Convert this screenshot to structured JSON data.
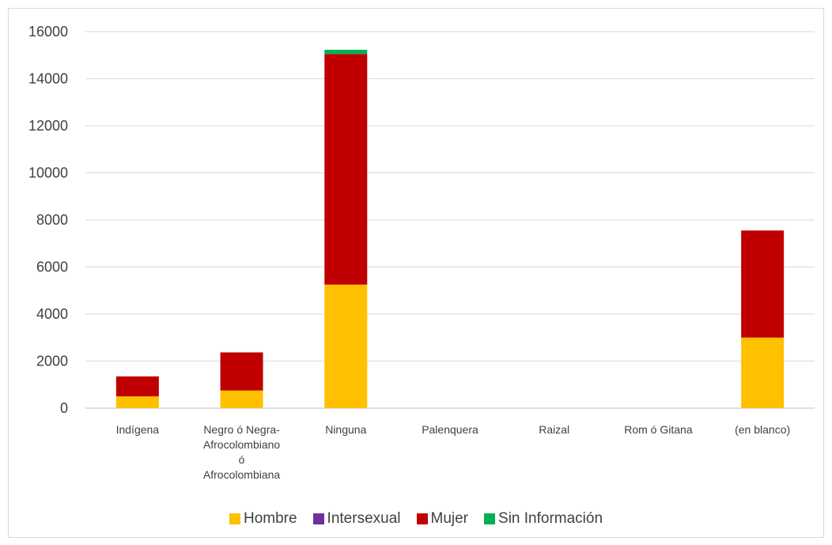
{
  "chart_data": {
    "type": "bar",
    "stacked": true,
    "categories": [
      "Indígena",
      "Negro ó Negra-Afrocolombiano ó Afrocolombiana",
      "Ninguna",
      "Palenquera",
      "Raizal",
      "Rom ó Gitana",
      "(en blanco)"
    ],
    "category_label_lines": [
      [
        "Indígena"
      ],
      [
        "Negro ó Negra-",
        "Afrocolombiano",
        "ó",
        "Afrocolombiana"
      ],
      [
        "Ninguna"
      ],
      [
        "Palenquera"
      ],
      [
        "Raizal"
      ],
      [
        "Rom ó Gitana"
      ],
      [
        "(en blanco)"
      ]
    ],
    "series": [
      {
        "name": "Hombre",
        "color": "#FFC000",
        "values": [
          500,
          750,
          5250,
          0,
          0,
          0,
          3000
        ]
      },
      {
        "name": "Intersexual",
        "color": "#7030A0",
        "values": [
          0,
          0,
          0,
          0,
          0,
          0,
          0
        ]
      },
      {
        "name": "Mujer",
        "color": "#C00000",
        "values": [
          850,
          1620,
          9800,
          0,
          0,
          0,
          4550
        ]
      },
      {
        "name": "Sin Información",
        "color": "#00B050",
        "values": [
          0,
          0,
          180,
          0,
          0,
          0,
          0
        ]
      }
    ],
    "title": "",
    "xlabel": "",
    "ylabel": "",
    "ylim": [
      0,
      16000
    ],
    "yticks": [
      0,
      2000,
      4000,
      6000,
      8000,
      10000,
      12000,
      14000,
      16000
    ],
    "grid": true,
    "legend_position": "bottom"
  }
}
